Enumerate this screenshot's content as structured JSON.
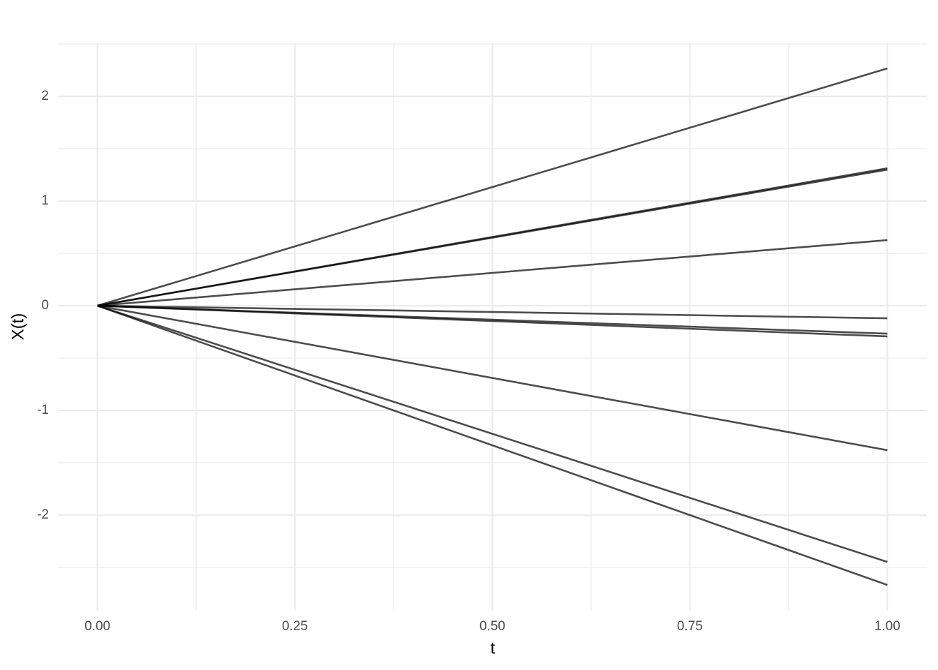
{
  "chart_data": {
    "type": "line",
    "x_label": "t",
    "y_label": "X(t)",
    "x": [
      0,
      1
    ],
    "color": "#000000",
    "alpha": 0.7,
    "series": [
      {
        "values": [
          0,
          2.267
        ]
      },
      {
        "values": [
          0,
          1.313
        ]
      },
      {
        "values": [
          0,
          1.3
        ]
      },
      {
        "values": [
          0,
          0.627
        ]
      },
      {
        "values": [
          0,
          -0.12
        ]
      },
      {
        "values": [
          0,
          -0.267
        ]
      },
      {
        "values": [
          0,
          -0.293
        ]
      },
      {
        "values": [
          0,
          -1.38
        ]
      },
      {
        "values": [
          0,
          -2.447
        ]
      },
      {
        "values": [
          0,
          -2.667
        ]
      }
    ],
    "xlim": [
      -0.05,
      1.05
    ],
    "xticks": [
      {
        "value": 0,
        "label": "0.00"
      },
      {
        "value": 0.25,
        "label": "0.25"
      },
      {
        "value": 0.5,
        "label": "0.50"
      },
      {
        "value": 0.75,
        "label": "0.75"
      },
      {
        "value": 1,
        "label": "1.00"
      }
    ],
    "ylim": [
      -2.913,
      2.507
    ],
    "yticks": [
      -2,
      -1,
      0,
      1,
      2
    ],
    "grid": true,
    "minor_grid": true
  }
}
